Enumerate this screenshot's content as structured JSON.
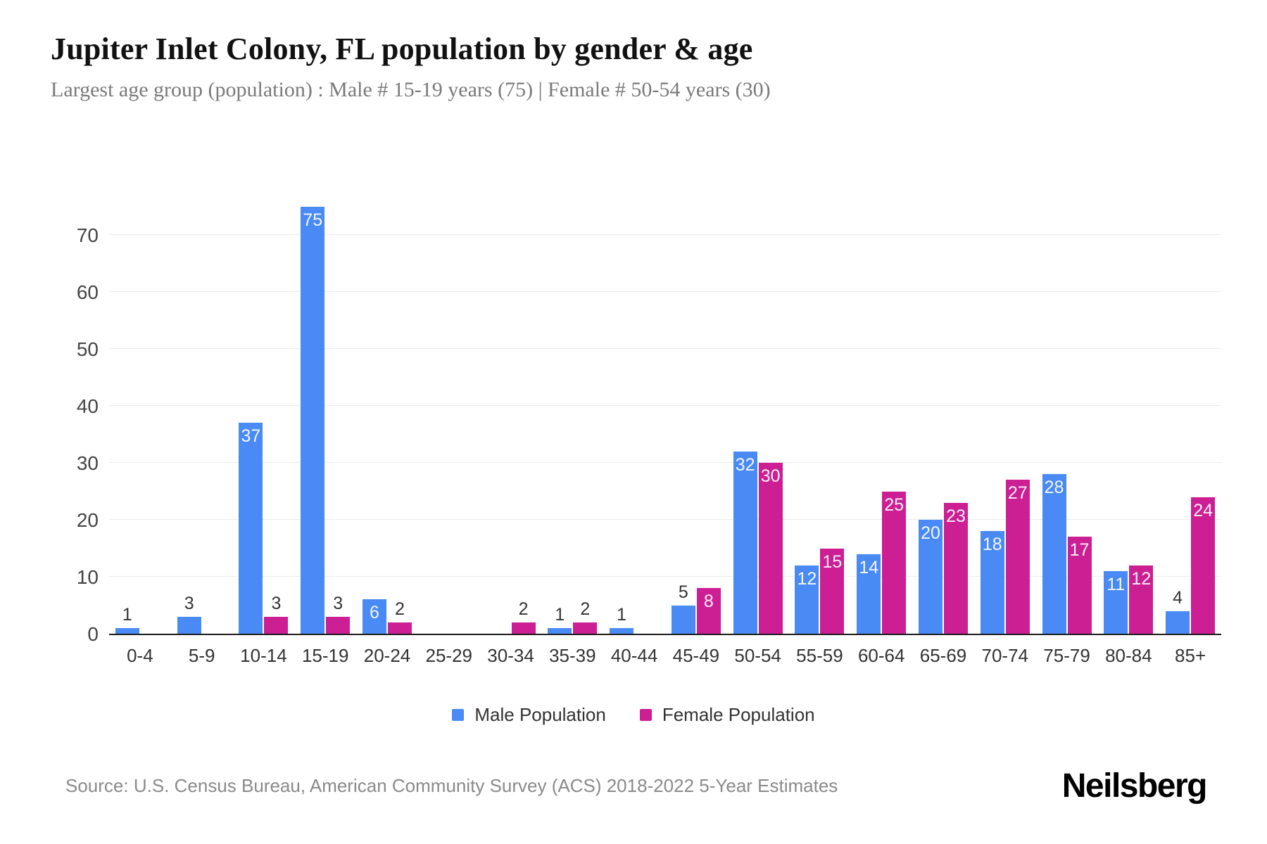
{
  "header": {
    "title": "Jupiter Inlet Colony, FL population by gender & age",
    "subtitle": "Largest age group (population) : Male # 15-19 years (75) | Female # 50-54 years (30)"
  },
  "chart_data": {
    "type": "bar",
    "title": "Jupiter Inlet Colony, FL population by gender & age",
    "categories": [
      "0-4",
      "5-9",
      "10-14",
      "15-19",
      "20-24",
      "25-29",
      "30-34",
      "35-39",
      "40-44",
      "45-49",
      "50-54",
      "55-59",
      "60-64",
      "65-69",
      "70-74",
      "75-79",
      "80-84",
      "85+"
    ],
    "series": [
      {
        "name": "Male Population",
        "color": "#4a8af4",
        "values": [
          1,
          3,
          37,
          75,
          6,
          0,
          0,
          1,
          1,
          5,
          32,
          12,
          14,
          20,
          18,
          28,
          11,
          4
        ]
      },
      {
        "name": "Female Population",
        "color": "#cc1f94",
        "values": [
          0,
          0,
          3,
          3,
          2,
          0,
          2,
          2,
          0,
          8,
          30,
          15,
          25,
          23,
          27,
          17,
          12,
          24
        ]
      }
    ],
    "xlabel": "",
    "ylabel": "",
    "ylim": [
      0,
      75
    ],
    "yticks": [
      0,
      10,
      20,
      30,
      40,
      50,
      60,
      70
    ],
    "grid": "horizontal",
    "legend_position": "bottom",
    "value_label_color_inside": "#ffffff",
    "value_label_color_outside": "#333333"
  },
  "footer": {
    "source": "Source: U.S. Census Bureau, American Community Survey (ACS) 2018-2022 5-Year Estimates",
    "brand": "Neilsberg"
  }
}
